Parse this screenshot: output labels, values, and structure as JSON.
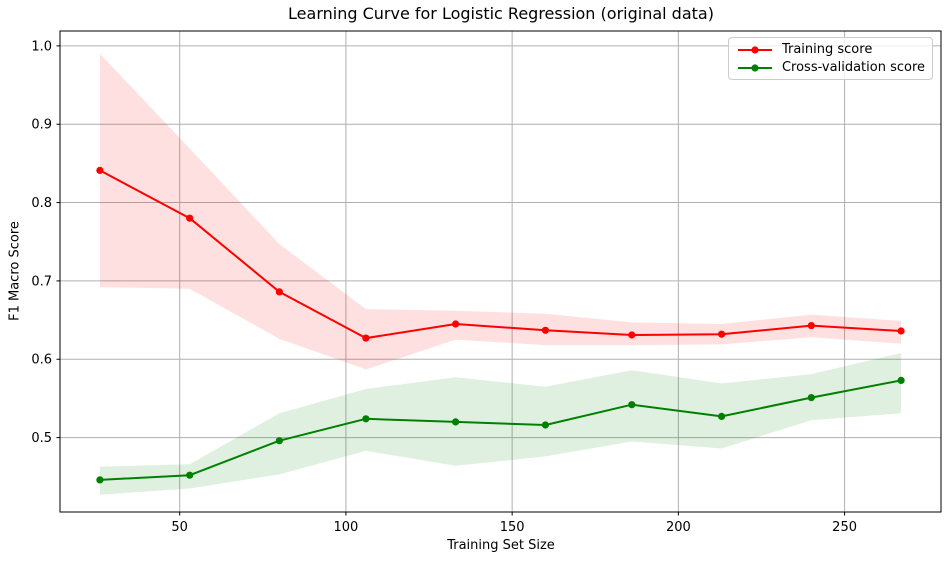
{
  "figure": {
    "background": "#ffffff"
  },
  "chart_data": {
    "type": "line",
    "title": "Learning Curve for Logistic Regression (original data)",
    "xlabel": "Training Set Size",
    "ylabel": "F1 Macro Score",
    "xlim": [
      14,
      279
    ],
    "ylim": [
      0.405,
      1.019
    ],
    "x_ticks": [
      50,
      100,
      150,
      200,
      250
    ],
    "y_ticks": [
      0.5,
      0.6,
      0.7,
      0.8,
      0.9,
      1.0
    ],
    "grid": true,
    "grid_color": "#b0b0b0",
    "axis_color": "#000000",
    "band_opacity": 0.12,
    "legend_position": "upper right",
    "x": [
      26,
      53,
      80,
      106,
      133,
      160,
      186,
      213,
      240,
      267
    ],
    "series": [
      {
        "id": "training",
        "name": "Training score",
        "color": "#ff0000",
        "values": [
          0.841,
          0.78,
          0.686,
          0.627,
          0.645,
          0.637,
          0.631,
          0.632,
          0.643,
          0.636
        ],
        "band_upper": [
          0.99,
          0.869,
          0.747,
          0.664,
          0.662,
          0.658,
          0.647,
          0.645,
          0.657,
          0.649
        ],
        "band_lower": [
          0.692,
          0.69,
          0.626,
          0.587,
          0.625,
          0.618,
          0.618,
          0.619,
          0.628,
          0.62
        ]
      },
      {
        "id": "cross-validation",
        "name": "Cross-validation score",
        "color": "#008000",
        "values": [
          0.446,
          0.452,
          0.496,
          0.524,
          0.52,
          0.516,
          0.542,
          0.527,
          0.551,
          0.573
        ],
        "band_upper": [
          0.463,
          0.466,
          0.531,
          0.562,
          0.577,
          0.565,
          0.586,
          0.569,
          0.581,
          0.608
        ],
        "band_lower": [
          0.427,
          0.435,
          0.453,
          0.483,
          0.464,
          0.476,
          0.495,
          0.486,
          0.522,
          0.531
        ]
      }
    ]
  }
}
